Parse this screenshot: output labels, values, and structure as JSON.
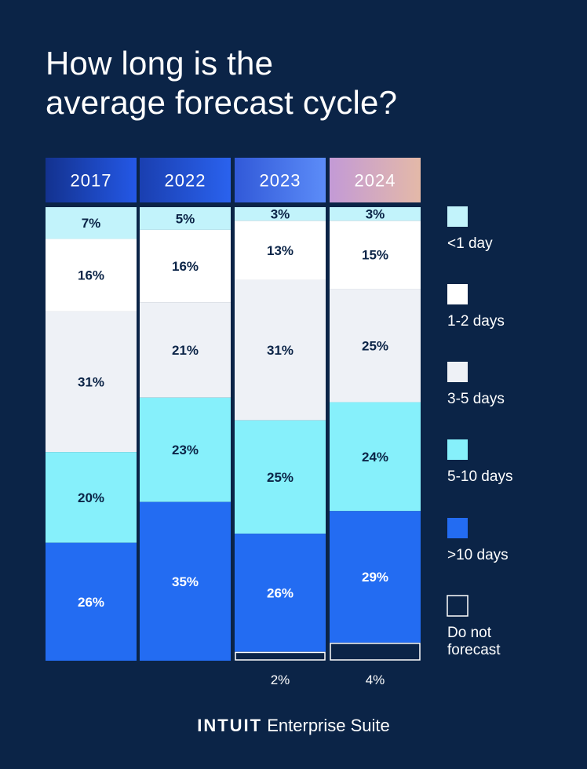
{
  "title_line1": "How long is the",
  "title_line2": "average forecast cycle?",
  "brand": {
    "name": "INTUIT",
    "suffix": "Enterprise Suite"
  },
  "chart_data": {
    "type": "bar",
    "stacked": true,
    "title": "How long is the average forecast cycle?",
    "categories": [
      "2017",
      "2022",
      "2023",
      "2024"
    ],
    "series": [
      {
        "name": "<1 day",
        "values": [
          7,
          5,
          3,
          3
        ],
        "color": "#c2f3fb"
      },
      {
        "name": "1-2 days",
        "values": [
          16,
          16,
          13,
          15
        ],
        "color": "#ffffff"
      },
      {
        "name": "3-5 days",
        "values": [
          31,
          21,
          31,
          25
        ],
        "color": "#eef1f6"
      },
      {
        "name": "5-10 days",
        "values": [
          20,
          23,
          25,
          24
        ],
        "color": "#86f0fb"
      },
      {
        "name": ">10 days",
        "values": [
          26,
          35,
          26,
          29
        ],
        "color": "#236cf2"
      },
      {
        "name": "Do not forecast",
        "values": [
          0,
          0,
          2,
          4
        ],
        "color": "#0b2447"
      }
    ],
    "labels": [
      [
        "7%",
        "5%",
        "3%",
        "3%"
      ],
      [
        "16%",
        "16%",
        "13%",
        "15%"
      ],
      [
        "31%",
        "21%",
        "31%",
        "25%"
      ],
      [
        "20%",
        "23%",
        "25%",
        "24%"
      ],
      [
        "26%",
        "35%",
        "26%",
        "29%"
      ],
      [
        "",
        "",
        "2%",
        "4%"
      ]
    ],
    "legend_labels": [
      "<1 day",
      "1-2 days",
      "3-5 days",
      "5-10 days",
      ">10 days",
      "Do not",
      "forecast"
    ],
    "legend_position": "right",
    "header_colors": [
      [
        "#13328f",
        "#2458e6"
      ],
      [
        "#1a3fb0",
        "#2a62ee"
      ],
      [
        "#3159d8",
        "#5c8cf8"
      ],
      [
        "#c39ad6",
        "#e4b9a8"
      ]
    ],
    "ylim": [
      0,
      100
    ]
  }
}
